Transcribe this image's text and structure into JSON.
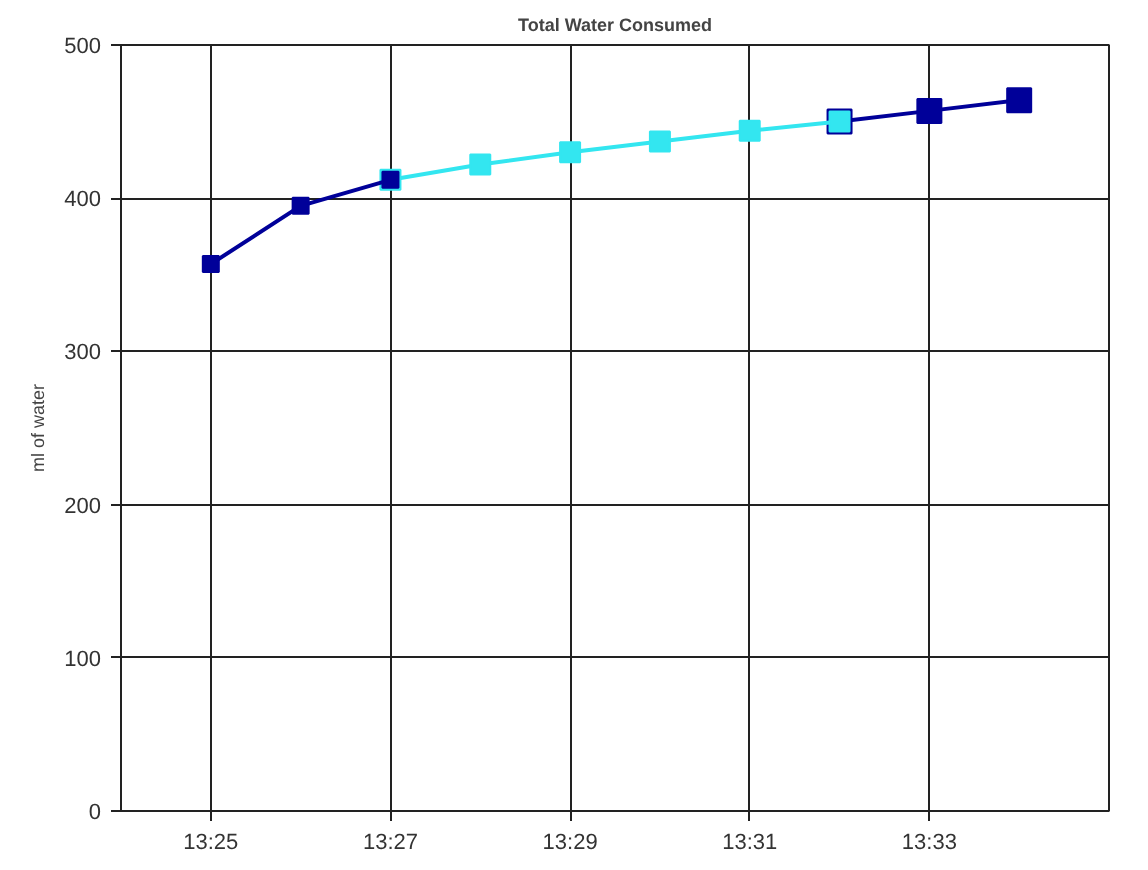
{
  "chart_data": {
    "type": "line",
    "title": "Total Water Consumed",
    "ylabel": "ml of water",
    "categories": [
      "13:25",
      null,
      "13:27",
      null,
      "13:29",
      null,
      "13:31",
      null,
      "13:33",
      null
    ],
    "series": [
      {
        "color": "#000099",
        "values": [
          null,
          null,
          null,
          null,
          null,
          null,
          null,
          450,
          457,
          464
        ]
      },
      {
        "color": "#33e6f0",
        "values": [
          null,
          null,
          412,
          422,
          430,
          437,
          444,
          450,
          null,
          null
        ]
      },
      {
        "color": "#000099",
        "values": [
          357,
          395,
          412,
          null,
          null,
          null,
          null,
          null,
          null,
          null
        ]
      }
    ],
    "ylim": [
      0,
      500
    ],
    "yticks": [
      0,
      100,
      200,
      300,
      400,
      500
    ],
    "grid": true,
    "marker": "square",
    "line_style": "solid"
  }
}
